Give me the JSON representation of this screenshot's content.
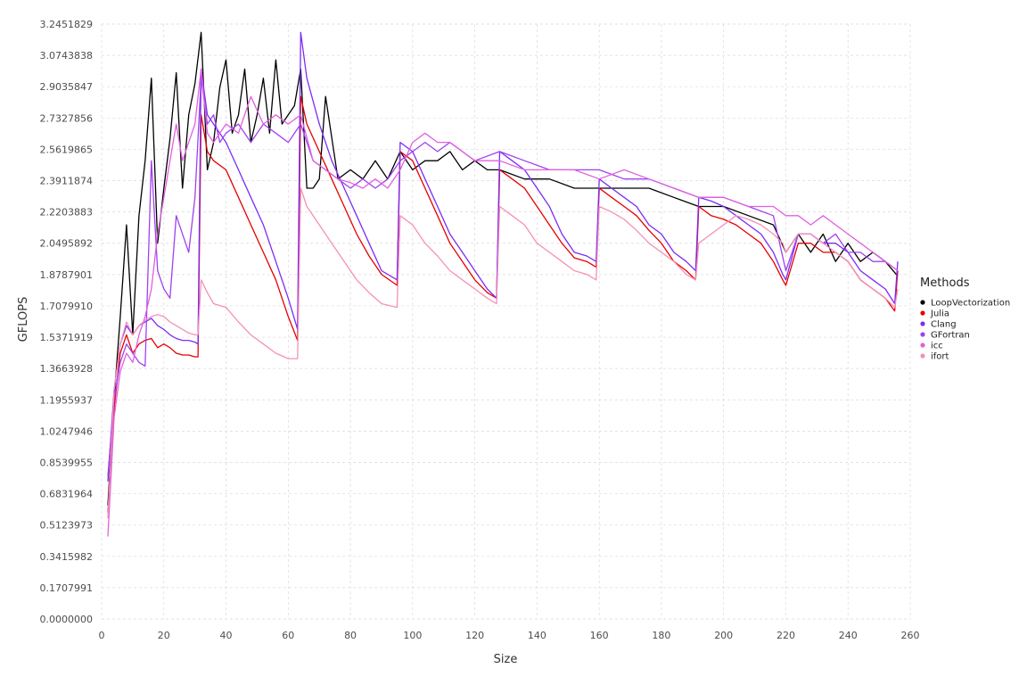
{
  "chart_data": {
    "type": "line",
    "xlabel": "Size",
    "ylabel": "GFLOPS",
    "xlim": [
      0,
      260
    ],
    "ylim": [
      0.0,
      3.2451829
    ],
    "x_ticks": [
      "0",
      "20",
      "40",
      "60",
      "80",
      "100",
      "120",
      "140",
      "160",
      "180",
      "200",
      "220",
      "240",
      "260"
    ],
    "y_ticks": [
      "0.0000000",
      "0.1707991",
      "0.3415982",
      "0.5123973",
      "0.6831964",
      "0.8539955",
      "1.0247946",
      "1.1955937",
      "1.3663928",
      "1.5371919",
      "1.7079910",
      "1.8787901",
      "2.0495892",
      "2.2203883",
      "2.3911874",
      "2.5619865",
      "2.7327856",
      "2.9035847",
      "3.0743838",
      "3.2451829"
    ],
    "grid": true,
    "legend": {
      "title": "Methods",
      "position": "right"
    },
    "series": [
      {
        "name": "LoopVectorization",
        "color": "#000000",
        "x": [
          2,
          4,
          6,
          8,
          10,
          12,
          14,
          16,
          18,
          20,
          22,
          24,
          26,
          28,
          30,
          32,
          34,
          36,
          38,
          40,
          42,
          44,
          46,
          48,
          50,
          52,
          54,
          56,
          58,
          60,
          62,
          64,
          66,
          68,
          70,
          72,
          76,
          80,
          84,
          88,
          92,
          96,
          100,
          104,
          108,
          112,
          116,
          120,
          124,
          128,
          136,
          144,
          152,
          160,
          168,
          176,
          184,
          192,
          200,
          208,
          216,
          220,
          224,
          228,
          232,
          236,
          240,
          244,
          248,
          252,
          256
        ],
        "y": [
          0.62,
          1.2,
          1.65,
          2.15,
          1.55,
          2.2,
          2.5,
          2.95,
          2.05,
          2.35,
          2.62,
          2.98,
          2.35,
          2.75,
          2.92,
          3.2,
          2.45,
          2.6,
          2.9,
          3.05,
          2.65,
          2.75,
          3.0,
          2.6,
          2.75,
          2.95,
          2.65,
          3.05,
          2.7,
          2.75,
          2.8,
          3.0,
          2.35,
          2.35,
          2.4,
          2.85,
          2.4,
          2.45,
          2.4,
          2.5,
          2.4,
          2.55,
          2.45,
          2.5,
          2.5,
          2.55,
          2.45,
          2.5,
          2.45,
          2.45,
          2.4,
          2.4,
          2.35,
          2.35,
          2.35,
          2.35,
          2.3,
          2.25,
          2.25,
          2.2,
          2.15,
          2.0,
          2.1,
          2.0,
          2.1,
          1.95,
          2.05,
          1.95,
          2.0,
          1.95,
          1.87
        ]
      },
      {
        "name": "Julia",
        "color": "#e60000",
        "x": [
          2,
          4,
          6,
          8,
          10,
          12,
          14,
          16,
          18,
          20,
          22,
          24,
          26,
          28,
          30,
          31,
          32,
          34,
          36,
          40,
          44,
          48,
          52,
          56,
          60,
          63,
          64,
          66,
          70,
          74,
          78,
          82,
          86,
          90,
          95,
          96,
          100,
          104,
          108,
          112,
          116,
          120,
          124,
          127,
          128,
          132,
          136,
          140,
          144,
          148,
          152,
          156,
          159,
          160,
          164,
          168,
          172,
          176,
          180,
          184,
          188,
          191,
          192,
          196,
          200,
          204,
          208,
          212,
          216,
          219,
          220,
          224,
          228,
          232,
          236,
          240,
          244,
          248,
          252,
          255,
          256
        ],
        "y": [
          0.58,
          1.15,
          1.45,
          1.55,
          1.45,
          1.5,
          1.52,
          1.53,
          1.48,
          1.5,
          1.48,
          1.45,
          1.44,
          1.44,
          1.43,
          1.43,
          2.75,
          2.55,
          2.5,
          2.45,
          2.3,
          2.15,
          2.0,
          1.85,
          1.65,
          1.52,
          2.85,
          2.7,
          2.55,
          2.4,
          2.25,
          2.1,
          1.98,
          1.88,
          1.82,
          2.55,
          2.5,
          2.35,
          2.2,
          2.05,
          1.95,
          1.85,
          1.78,
          1.75,
          2.45,
          2.4,
          2.35,
          2.25,
          2.15,
          2.05,
          1.97,
          1.95,
          1.92,
          2.35,
          2.3,
          2.25,
          2.2,
          2.12,
          2.05,
          1.95,
          1.9,
          1.85,
          2.25,
          2.2,
          2.18,
          2.15,
          2.1,
          2.05,
          1.95,
          1.85,
          1.82,
          2.05,
          2.05,
          2.0,
          2.0,
          1.95,
          1.85,
          1.8,
          1.75,
          1.68,
          1.9
        ]
      },
      {
        "name": "Clang",
        "color": "#7b2cf5",
        "x": [
          2,
          4,
          6,
          8,
          10,
          12,
          14,
          16,
          18,
          20,
          22,
          24,
          26,
          28,
          30,
          31,
          32,
          34,
          36,
          40,
          44,
          48,
          52,
          56,
          60,
          63,
          64,
          66,
          70,
          74,
          78,
          82,
          86,
          90,
          95,
          96,
          100,
          104,
          108,
          112,
          116,
          120,
          124,
          127,
          128,
          132,
          136,
          140,
          144,
          148,
          152,
          156,
          159,
          160,
          164,
          168,
          172,
          176,
          180,
          184,
          188,
          191,
          192,
          196,
          200,
          204,
          208,
          212,
          216,
          219,
          220,
          224,
          228,
          232,
          236,
          240,
          244,
          248,
          252,
          255,
          256
        ],
        "y": [
          0.75,
          1.25,
          1.5,
          1.6,
          1.55,
          1.6,
          1.62,
          1.64,
          1.6,
          1.58,
          1.55,
          1.53,
          1.52,
          1.52,
          1.51,
          1.5,
          3.0,
          2.75,
          2.7,
          2.6,
          2.45,
          2.3,
          2.15,
          1.95,
          1.75,
          1.58,
          3.2,
          2.95,
          2.7,
          2.5,
          2.35,
          2.2,
          2.05,
          1.9,
          1.85,
          2.6,
          2.55,
          2.4,
          2.25,
          2.1,
          2.0,
          1.9,
          1.8,
          1.75,
          2.55,
          2.5,
          2.45,
          2.35,
          2.25,
          2.1,
          2.0,
          1.98,
          1.95,
          2.4,
          2.35,
          2.3,
          2.25,
          2.15,
          2.1,
          2.0,
          1.95,
          1.9,
          2.3,
          2.28,
          2.25,
          2.2,
          2.15,
          2.1,
          2.0,
          1.88,
          1.85,
          2.1,
          2.1,
          2.05,
          2.05,
          2.0,
          1.9,
          1.85,
          1.8,
          1.72,
          1.95
        ]
      },
      {
        "name": "GFortran",
        "color": "#a040f0",
        "x": [
          2,
          4,
          6,
          8,
          10,
          12,
          14,
          16,
          18,
          20,
          22,
          24,
          26,
          28,
          30,
          32,
          34,
          36,
          38,
          40,
          44,
          48,
          52,
          56,
          60,
          64,
          68,
          72,
          76,
          80,
          84,
          88,
          92,
          96,
          100,
          104,
          108,
          112,
          116,
          120,
          128,
          136,
          144,
          152,
          160,
          168,
          176,
          184,
          192,
          200,
          208,
          216,
          220,
          224,
          228,
          232,
          236,
          240,
          244,
          248,
          252,
          256
        ],
        "y": [
          0.78,
          1.2,
          1.4,
          1.5,
          1.45,
          1.4,
          1.38,
          2.5,
          1.9,
          1.8,
          1.75,
          2.2,
          2.1,
          2.0,
          2.3,
          2.95,
          2.7,
          2.75,
          2.6,
          2.65,
          2.7,
          2.6,
          2.7,
          2.65,
          2.6,
          2.7,
          2.5,
          2.45,
          2.4,
          2.35,
          2.4,
          2.35,
          2.4,
          2.5,
          2.55,
          2.6,
          2.55,
          2.6,
          2.55,
          2.5,
          2.55,
          2.5,
          2.45,
          2.45,
          2.45,
          2.4,
          2.4,
          2.35,
          2.3,
          2.3,
          2.25,
          2.2,
          1.9,
          2.1,
          2.1,
          2.05,
          2.1,
          2.0,
          2.0,
          1.95,
          1.95,
          1.9
        ]
      },
      {
        "name": "icc",
        "color": "#e060e0",
        "x": [
          2,
          4,
          6,
          8,
          10,
          12,
          14,
          16,
          18,
          20,
          22,
          24,
          26,
          28,
          30,
          32,
          34,
          36,
          38,
          40,
          44,
          48,
          52,
          56,
          60,
          64,
          68,
          72,
          76,
          80,
          84,
          88,
          92,
          96,
          100,
          104,
          108,
          112,
          116,
          120,
          128,
          136,
          144,
          152,
          160,
          168,
          176,
          184,
          192,
          200,
          208,
          216,
          220,
          224,
          228,
          232,
          236,
          240,
          244,
          248,
          252,
          256
        ],
        "y": [
          0.45,
          1.1,
          1.35,
          1.45,
          1.4,
          1.55,
          1.65,
          1.8,
          2.1,
          2.3,
          2.5,
          2.7,
          2.5,
          2.6,
          2.7,
          3.0,
          2.65,
          2.6,
          2.65,
          2.7,
          2.65,
          2.85,
          2.7,
          2.75,
          2.7,
          2.75,
          2.5,
          2.45,
          2.4,
          2.38,
          2.35,
          2.4,
          2.35,
          2.45,
          2.6,
          2.65,
          2.6,
          2.6,
          2.55,
          2.5,
          2.5,
          2.45,
          2.45,
          2.45,
          2.4,
          2.45,
          2.4,
          2.35,
          2.3,
          2.3,
          2.25,
          2.25,
          2.2,
          2.2,
          2.15,
          2.2,
          2.15,
          2.1,
          2.05,
          2.0,
          1.95,
          1.9
        ]
      },
      {
        "name": "ifort",
        "color": "#f490b8",
        "x": [
          2,
          4,
          6,
          8,
          10,
          12,
          14,
          16,
          18,
          20,
          22,
          24,
          26,
          28,
          30,
          31,
          32,
          34,
          36,
          40,
          44,
          48,
          52,
          56,
          60,
          63,
          64,
          66,
          70,
          74,
          78,
          82,
          86,
          90,
          95,
          96,
          100,
          104,
          108,
          112,
          116,
          120,
          124,
          127,
          128,
          132,
          136,
          140,
          144,
          148,
          152,
          156,
          159,
          160,
          164,
          168,
          172,
          176,
          180,
          184,
          188,
          191,
          192,
          196,
          200,
          204,
          208,
          212,
          216,
          219,
          220,
          224,
          228,
          232,
          236,
          240,
          244,
          248,
          252,
          255,
          256
        ],
        "y": [
          0.55,
          1.25,
          1.5,
          1.62,
          1.55,
          1.6,
          1.63,
          1.65,
          1.66,
          1.65,
          1.62,
          1.6,
          1.58,
          1.56,
          1.55,
          1.55,
          1.85,
          1.78,
          1.72,
          1.7,
          1.62,
          1.55,
          1.5,
          1.45,
          1.42,
          1.42,
          2.35,
          2.25,
          2.15,
          2.05,
          1.95,
          1.85,
          1.78,
          1.72,
          1.7,
          2.2,
          2.15,
          2.05,
          1.98,
          1.9,
          1.85,
          1.8,
          1.75,
          1.72,
          2.25,
          2.2,
          2.15,
          2.05,
          2.0,
          1.95,
          1.9,
          1.88,
          1.85,
          2.25,
          2.22,
          2.18,
          2.12,
          2.05,
          2.0,
          1.95,
          1.88,
          1.85,
          2.05,
          2.1,
          2.15,
          2.2,
          2.18,
          2.15,
          2.1,
          2.05,
          2.0,
          2.1,
          2.1,
          2.05,
          2.0,
          1.95,
          1.85,
          1.8,
          1.75,
          1.7,
          1.8
        ]
      }
    ]
  }
}
